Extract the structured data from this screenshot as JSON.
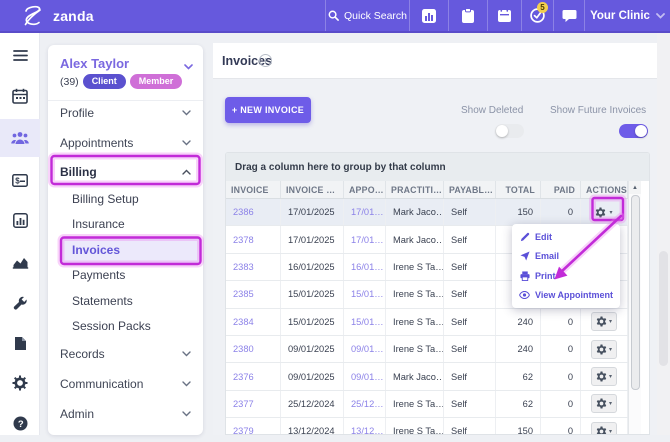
{
  "accent_color": "#6659dd",
  "annotation_color": "#c22bd8",
  "topbar": {
    "brand": "zanda",
    "quick_search_label": "Quick Search",
    "notification_count": "5",
    "clinic_label": "Your Clinic",
    "icon_cells": [
      "bar-chart",
      "clipboard",
      "calendar",
      "tasks-clock",
      "chat"
    ]
  },
  "rail_items": [
    "menu",
    "calendar",
    "clients",
    "billing-card",
    "bar-chart",
    "reports",
    "tools",
    "documents",
    "settings",
    "help"
  ],
  "rail_selected": "clients",
  "sidebar": {
    "patient_name": "Alex Taylor",
    "patient_age": "(39)",
    "badges": [
      {
        "label": "Client",
        "color": "#5b51cf"
      },
      {
        "label": "Member",
        "color": "#cf6fd7"
      }
    ],
    "top_sections": [
      {
        "label": "Profile",
        "chevron": "down"
      },
      {
        "label": "Appointments",
        "chevron": "down"
      },
      {
        "label": "Billing",
        "chevron": "up",
        "bold": true,
        "annotated": true
      }
    ],
    "billing_subitems": [
      {
        "label": "Billing Setup"
      },
      {
        "label": "Insurance"
      },
      {
        "label": "Invoices",
        "selected": true,
        "annotated": true
      },
      {
        "label": "Payments"
      },
      {
        "label": "Statements"
      },
      {
        "label": "Session Packs"
      }
    ],
    "bottom_sections": [
      {
        "label": "Records",
        "chevron": "down"
      },
      {
        "label": "Communication",
        "chevron": "down"
      },
      {
        "label": "Admin",
        "chevron": "down"
      }
    ]
  },
  "main": {
    "title": "Invoices",
    "new_invoice_label": "+ NEW INVOICE",
    "toggles": [
      {
        "label": "Show Deleted",
        "on": false
      },
      {
        "label": "Show Future Invoices",
        "on": true
      }
    ],
    "group_hint": "Drag a column here to group by that column",
    "table": {
      "columns": [
        "INVOICE",
        "INVOICE …",
        "APPO…",
        "PRACTITI…",
        "PAYABL…",
        "TOTAL",
        "PAID",
        "ACTIONS"
      ],
      "rows": [
        {
          "invoice": "2386",
          "invoice_date": "17/01/2025",
          "appointment": "17/01…",
          "practitioner": "Mark Jaco…",
          "payable": "Self",
          "total": "150",
          "paid": "0",
          "selected": true,
          "gear_plain": true
        },
        {
          "invoice": "2378",
          "invoice_date": "17/01/2025",
          "appointment": "17/01…",
          "practitioner": "Mark Jaco…",
          "payable": "Self",
          "total": "",
          "paid": "",
          "covered": true
        },
        {
          "invoice": "2383",
          "invoice_date": "16/01/2025",
          "appointment": "16/01…",
          "practitioner": "Irene S Ta…",
          "payable": "Self",
          "total": "",
          "paid": "",
          "covered": true
        },
        {
          "invoice": "2385",
          "invoice_date": "15/01/2025",
          "appointment": "15/01…",
          "practitioner": "Irene S Ta…",
          "payable": "Self",
          "total": "",
          "paid": "",
          "covered": true
        },
        {
          "invoice": "2384",
          "invoice_date": "15/01/2025",
          "appointment": "15/01…",
          "practitioner": "Irene S Ta…",
          "payable": "Self",
          "total": "240",
          "paid": "0"
        },
        {
          "invoice": "2380",
          "invoice_date": "09/01/2025",
          "appointment": "09/01…",
          "practitioner": "Irene S Ta…",
          "payable": "Self",
          "total": "240",
          "paid": "0"
        },
        {
          "invoice": "2376",
          "invoice_date": "09/01/2025",
          "appointment": "09/01…",
          "practitioner": "Mark Jaco…",
          "payable": "Self",
          "total": "62",
          "paid": "0"
        },
        {
          "invoice": "2377",
          "invoice_date": "25/12/2024",
          "appointment": "25/12…",
          "practitioner": "Irene S Ta…",
          "payable": "Self",
          "total": "62",
          "paid": "0"
        },
        {
          "invoice": "2379",
          "invoice_date": "13/12/2024",
          "appointment": "13/12…",
          "practitioner": "Irene S Ta…",
          "payable": "Self",
          "total": "150",
          "paid": "0"
        }
      ]
    },
    "context_menu": {
      "items": [
        {
          "label": "Edit",
          "icon": "pencil"
        },
        {
          "label": "Email",
          "icon": "send"
        },
        {
          "label": "Print",
          "icon": "printer"
        },
        {
          "label": "View Appointment",
          "icon": "eye"
        }
      ]
    }
  }
}
